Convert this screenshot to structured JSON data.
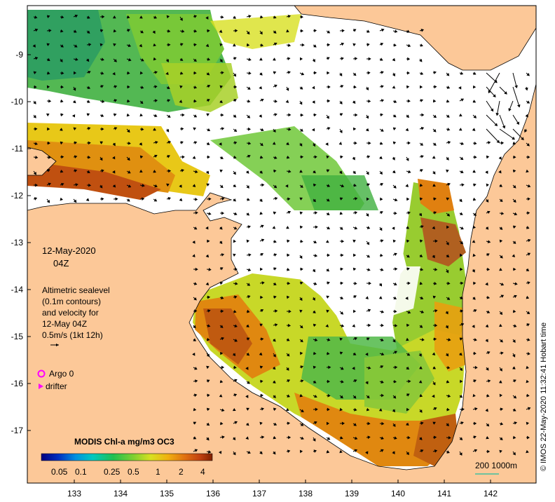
{
  "map": {
    "date_line1": "12-May-2020",
    "date_line2": "04Z",
    "legend_text": [
      "Altimetric sealevel",
      "(0.1m contours)",
      "and velocity for",
      "12-May 04Z",
      "0.5m/s (1kt 12h)"
    ],
    "argo_label": "Argo 0",
    "drifter_label": "drifter",
    "scale_text": "200  1000m",
    "credit": "© IMOS 22-May-2020 11:32:41 Hobart time",
    "colorbar": {
      "title": "MODIS Chl-a mg/m3 OC3",
      "labels": [
        "0.05",
        "0.1",
        "0.25",
        "0.5",
        "1",
        "2",
        "4"
      ],
      "colors": [
        "#000080",
        "#0030c0",
        "#0090e0",
        "#00c8c0",
        "#20c050",
        "#80d030",
        "#d8e020",
        "#f0b010",
        "#e07010",
        "#c04010",
        "#802000"
      ]
    },
    "lon_ticks": [
      "133",
      "134",
      "135",
      "136",
      "137",
      "138",
      "139",
      "140",
      "141",
      "142"
    ],
    "lat_ticks": [
      "-9",
      "-10",
      "-11",
      "-12",
      "-13",
      "-14",
      "-15",
      "-16",
      "-17"
    ],
    "colors": {
      "land": "#fcc898",
      "ocean_nodata": "#ffffff",
      "argo": "#ff00ff",
      "drifter": "#ff00ff",
      "scale_bar": "#40c0a0"
    }
  }
}
